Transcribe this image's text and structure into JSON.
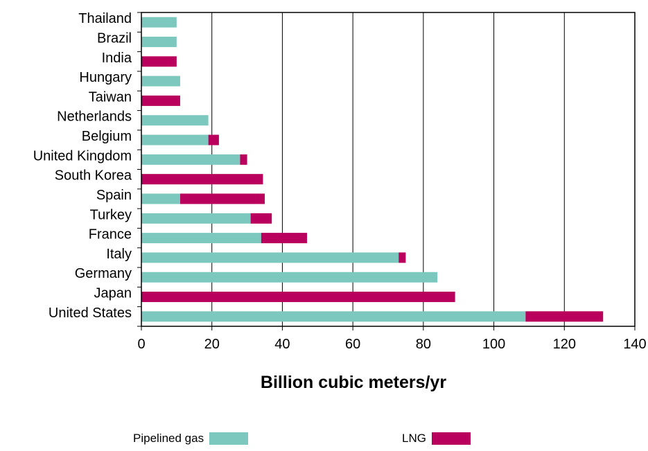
{
  "chart_data": {
    "type": "bar",
    "orientation": "horizontal",
    "stacked": true,
    "categories": [
      "Thailand",
      "Brazil",
      "India",
      "Hungary",
      "Taiwan",
      "Netherlands",
      "Belgium",
      "United Kingdom",
      "South Korea",
      "Spain",
      "Turkey",
      "France",
      "Italy",
      "Germany",
      "Japan",
      "United States"
    ],
    "series": [
      {
        "name": "Pipelined gas",
        "color": "#7cc8bf",
        "values": [
          10,
          10,
          0,
          11,
          0,
          19,
          19,
          28,
          0,
          11,
          31,
          34,
          73,
          84,
          0,
          109
        ]
      },
      {
        "name": "LNG",
        "color": "#b8005c",
        "values": [
          0,
          0,
          10,
          0,
          11,
          0,
          3,
          2,
          34.5,
          24,
          6,
          13,
          2,
          0,
          89,
          22
        ]
      }
    ],
    "xlabel": "Billion cubic meters/yr",
    "xlim": [
      0,
      140
    ],
    "xticks": [
      "0",
      "20",
      "40",
      "60",
      "80",
      "100",
      "120",
      "140"
    ],
    "grid": "vertical",
    "legend_position": "bottom"
  }
}
